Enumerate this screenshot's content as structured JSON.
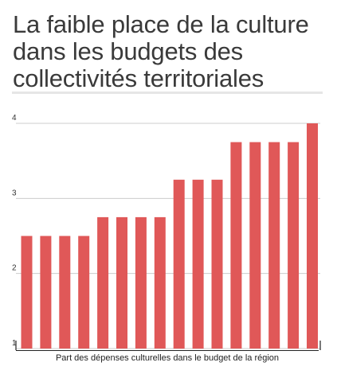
{
  "chart_data": {
    "type": "bar",
    "title": "La faible place de la culture dans les budgets des collectivités territoriales",
    "xlabel": "Part des dépenses culturelles dans le budget de la région",
    "ylabel": "",
    "ylim": [
      1,
      4
    ],
    "yticks": [
      1,
      2,
      3,
      4
    ],
    "grid": true,
    "values": [
      2.5,
      2.5,
      2.5,
      2.5,
      2.75,
      2.75,
      2.75,
      2.75,
      3.25,
      3.25,
      3.25,
      3.75,
      3.75,
      3.75,
      3.75,
      4
    ],
    "bar_color": "#e05858"
  }
}
